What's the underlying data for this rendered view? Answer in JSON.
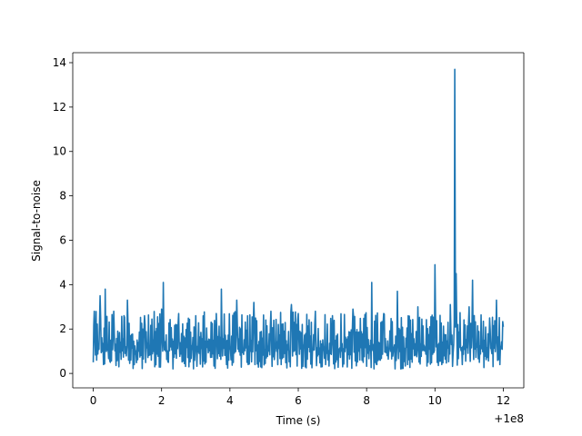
{
  "chart_data": {
    "type": "line",
    "title": "",
    "xlabel": "Time (s)",
    "ylabel": "Signal-to-noise",
    "x_offset_label": "+1e8",
    "xlim": [
      -0.6,
      12.6
    ],
    "ylim": [
      -0.65,
      14.45
    ],
    "xticks": [
      0,
      2,
      4,
      6,
      8,
      10,
      12
    ],
    "xtick_labels": [
      "0",
      "2",
      "4",
      "6",
      "8",
      "10",
      "12"
    ],
    "yticks": [
      0,
      2,
      4,
      6,
      8,
      10,
      12,
      14
    ],
    "ytick_labels": [
      "0",
      "2",
      "4",
      "6",
      "8",
      "10",
      "12",
      "14"
    ],
    "grid": false,
    "line_color": "#1f77b4",
    "series": [
      {
        "x": [
          0.0,
          0.03,
          0.1,
          0.2,
          0.3,
          0.35,
          0.5,
          0.6,
          0.75,
          0.9,
          1.0,
          1.2,
          1.5,
          1.8,
          2.0,
          2.05,
          2.2,
          2.5,
          2.8,
          3.0,
          3.3,
          3.6,
          3.75,
          3.9,
          4.2,
          4.5,
          4.7,
          4.9,
          5.2,
          5.5,
          5.8,
          6.0,
          6.2,
          6.5,
          6.8,
          7.0,
          7.3,
          7.6,
          7.9,
          8.15,
          8.3,
          8.5,
          8.9,
          9.2,
          9.5,
          9.8,
          10.0,
          10.2,
          10.45,
          10.58,
          10.62,
          10.8,
          11.0,
          11.1,
          11.3,
          11.6,
          11.8,
          11.9,
          12.0
        ],
        "y": [
          0.5,
          2.8,
          0.6,
          3.5,
          0.4,
          3.8,
          0.5,
          2.8,
          0.3,
          2.6,
          3.3,
          0.4,
          2.6,
          0.3,
          2.9,
          4.1,
          0.5,
          2.7,
          0.3,
          2.6,
          0.5,
          2.7,
          3.8,
          0.4,
          3.3,
          0.5,
          3.2,
          0.3,
          2.8,
          0.4,
          3.1,
          2.7,
          0.3,
          2.8,
          0.4,
          2.6,
          0.3,
          2.9,
          0.5,
          4.1,
          0.4,
          2.7,
          3.7,
          0.4,
          3.0,
          0.5,
          4.9,
          0.4,
          3.1,
          13.7,
          4.5,
          0.4,
          3.0,
          4.2,
          0.5,
          2.5,
          3.3,
          0.4,
          2.1
        ],
        "description_note": ""
      }
    ]
  }
}
